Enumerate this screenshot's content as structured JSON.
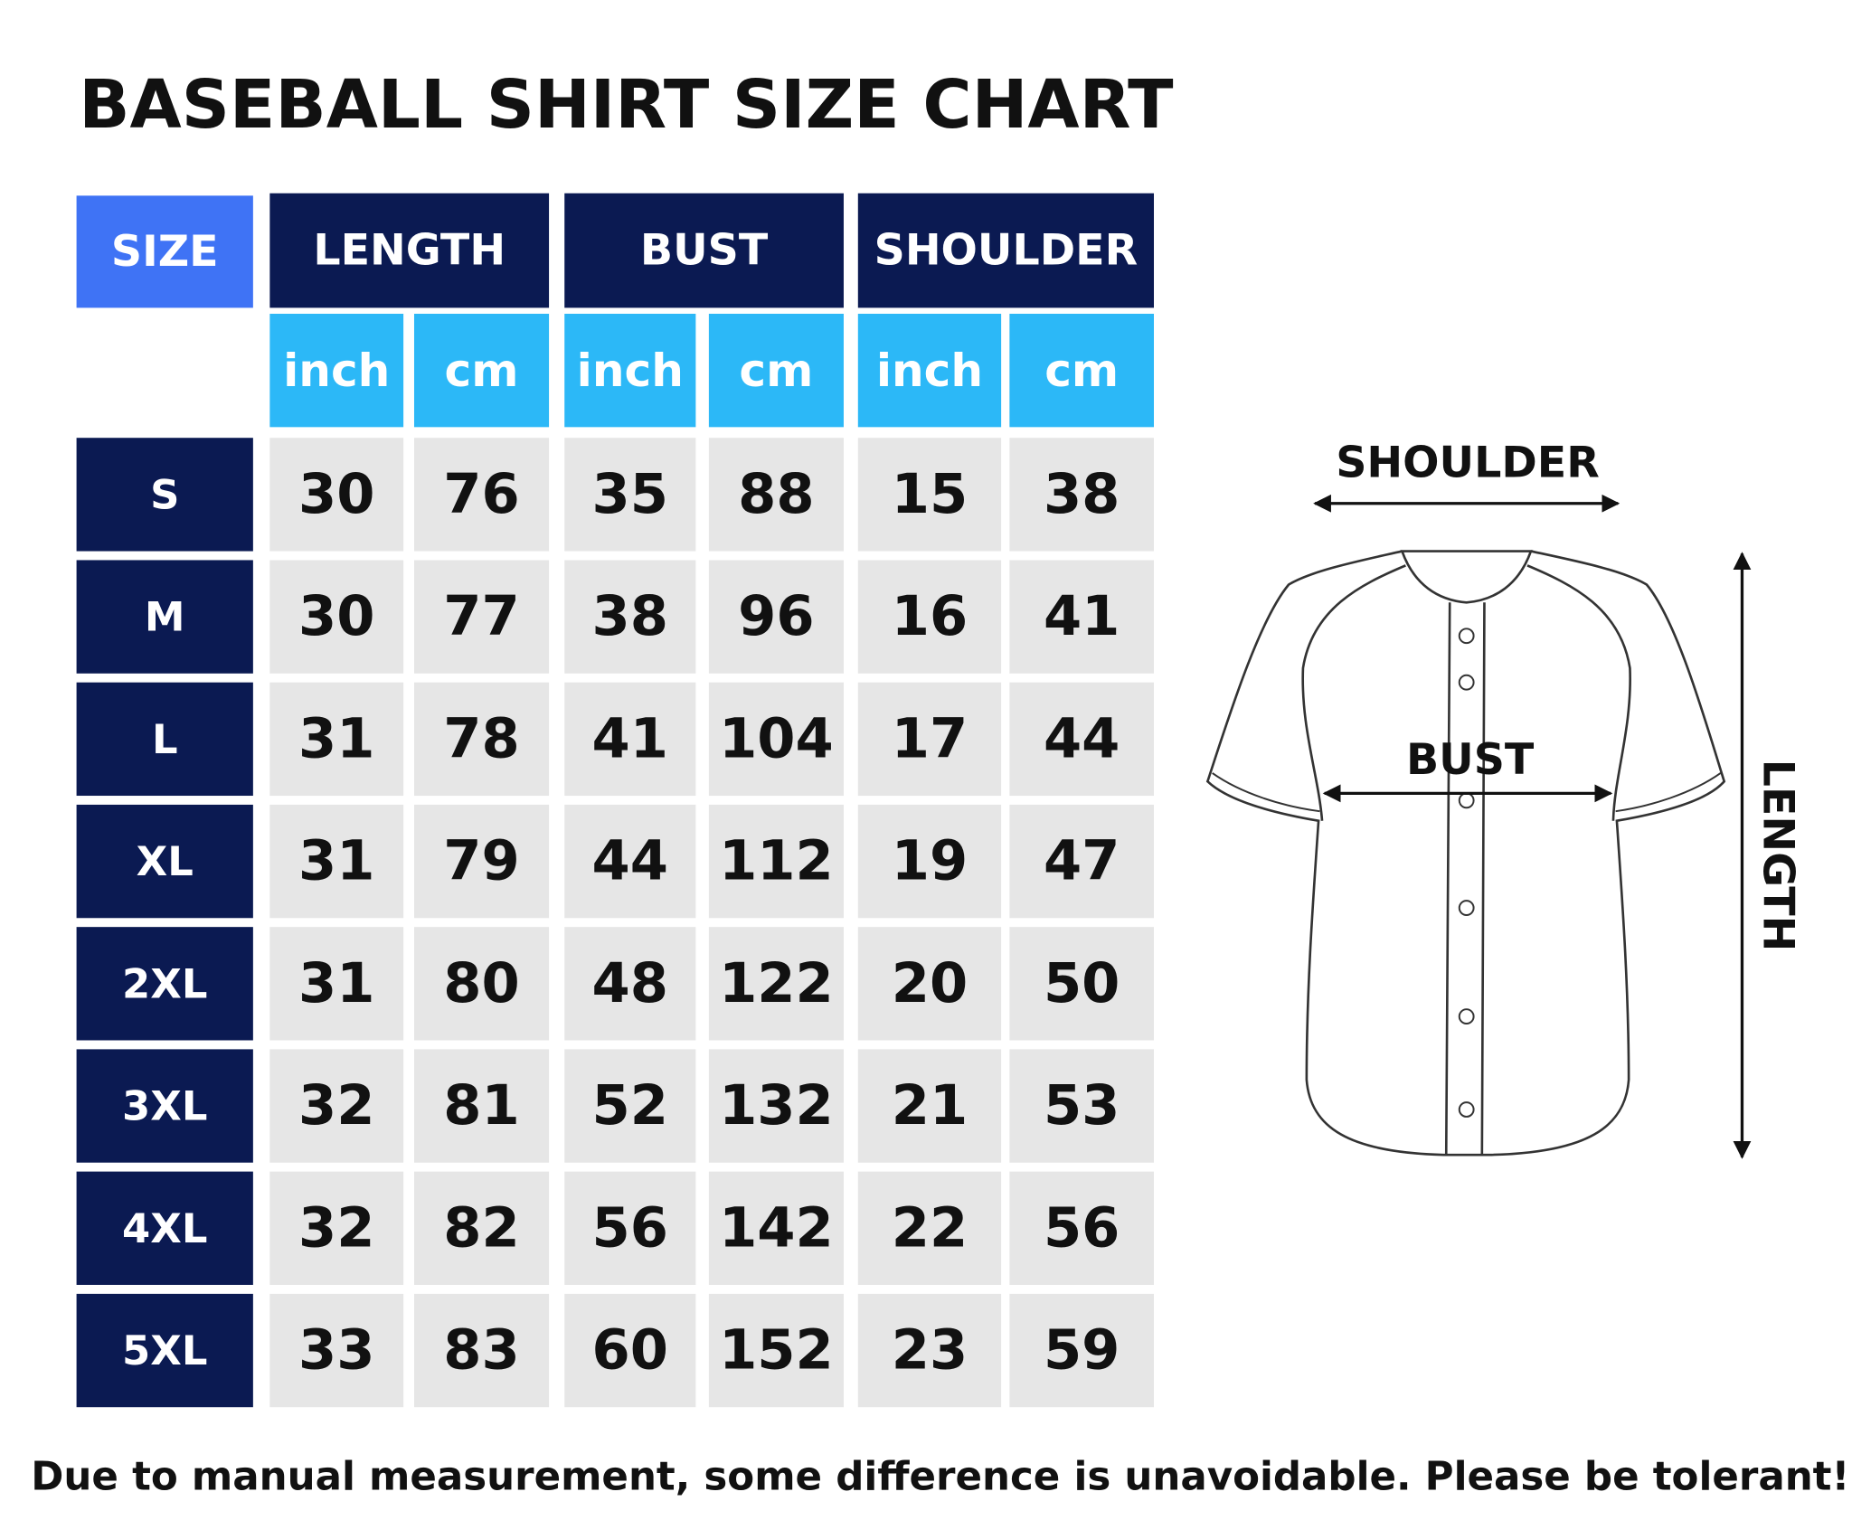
{
  "title": "BASEBALL SHIRT SIZE CHART",
  "table": {
    "size_header": "SIZE",
    "groups": [
      "LENGTH",
      "BUST",
      "SHOULDER"
    ],
    "units": [
      "inch",
      "cm",
      "inch",
      "cm",
      "inch",
      "cm"
    ],
    "rows": [
      {
        "size": "S",
        "values": [
          30,
          76,
          35,
          88,
          15,
          38
        ]
      },
      {
        "size": "M",
        "values": [
          30,
          77,
          38,
          96,
          16,
          41
        ]
      },
      {
        "size": "L",
        "values": [
          31,
          78,
          41,
          104,
          17,
          44
        ]
      },
      {
        "size": "XL",
        "values": [
          31,
          79,
          44,
          112,
          19,
          47
        ]
      },
      {
        "size": "2XL",
        "values": [
          31,
          80,
          48,
          122,
          20,
          50
        ]
      },
      {
        "size": "3XL",
        "values": [
          32,
          81,
          52,
          132,
          21,
          53
        ]
      },
      {
        "size": "4XL",
        "values": [
          32,
          82,
          56,
          142,
          22,
          56
        ]
      },
      {
        "size": "5XL",
        "values": [
          33,
          83,
          60,
          152,
          23,
          59
        ]
      }
    ]
  },
  "diagram": {
    "shoulder": "SHOULDER",
    "bust": "BUST",
    "length": "LENGTH"
  },
  "note": "Due to manual measurement, some difference is unavoidable. Please be tolerant!"
}
